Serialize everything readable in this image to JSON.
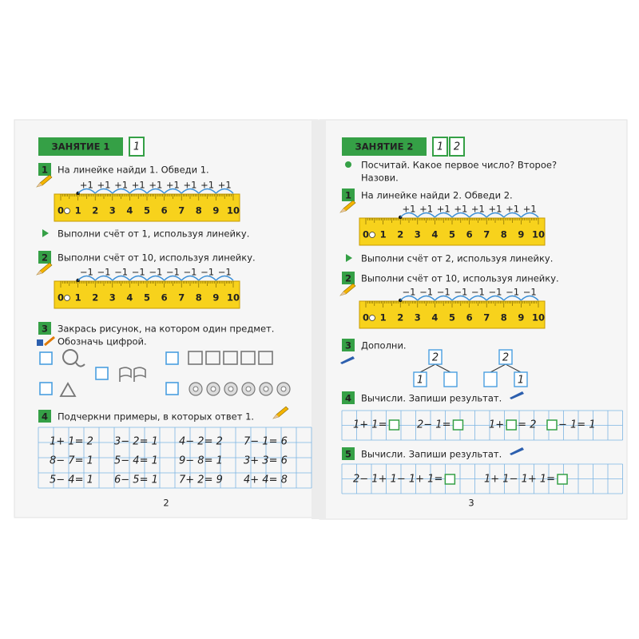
{
  "left": {
    "lesson": "ЗАНЯТИЕ 1",
    "lesson_boxes": [
      "1"
    ],
    "t1": {
      "number": "1",
      "text": "На линейке найди 1. Обведи 1.",
      "steps": [
        "+1",
        "+1",
        "+1",
        "+1",
        "+1",
        "+1",
        "+1",
        "+1",
        "+1"
      ],
      "ruler": [
        "0",
        "1",
        "2",
        "3",
        "4",
        "5",
        "6",
        "7",
        "8",
        "9",
        "10"
      ]
    },
    "hint1": "Выполни счёт от 1, используя линейку.",
    "t2": {
      "number": "2",
      "text": "Выполни счёт от 10, используя линейку.",
      "steps": [
        "−1",
        "−1",
        "−1",
        "−1",
        "−1",
        "−1",
        "−1",
        "−1",
        "−1"
      ],
      "ruler": [
        "0",
        "1",
        "2",
        "3",
        "4",
        "5",
        "6",
        "7",
        "8",
        "9",
        "10"
      ]
    },
    "t3": {
      "number": "3",
      "lines": [
        "Закрась рисунок, на котором один предмет.",
        "Обозначь цифрой."
      ]
    },
    "t4": {
      "number": "4",
      "text": "Подчеркни примеры, в которых ответ 1.",
      "rows": [
        [
          "1+ 1= 2",
          "3− 2= 1",
          "4− 2= 2",
          "7− 1= 6"
        ],
        [
          "8− 7= 1",
          "5− 4= 1",
          "9− 8= 1",
          "3+ 3= 6"
        ],
        [
          "5− 4= 1",
          "6− 5= 1",
          "7+ 2= 9",
          "4+ 4= 8"
        ]
      ]
    },
    "page": "2"
  },
  "right": {
    "lesson": "ЗАНЯТИЕ 2",
    "lesson_boxes": [
      "1",
      "2"
    ],
    "intro": [
      "Посчитай. Какое первое число? Второе?",
      "Назови."
    ],
    "t1": {
      "number": "1",
      "text": "На линейке найди 2. Обведи 2.",
      "steps": [
        "+1",
        "+1",
        "+1",
        "+1",
        "+1",
        "+1",
        "+1",
        "+1"
      ],
      "ruler": [
        "0",
        "1",
        "2",
        "3",
        "4",
        "5",
        "6",
        "7",
        "8",
        "9",
        "10"
      ]
    },
    "hint1": "Выполни счёт от 2, используя линейку.",
    "t2": {
      "number": "2",
      "text": "Выполни счёт от 10, используя линейку.",
      "steps": [
        "−1",
        "−1",
        "−1",
        "−1",
        "−1",
        "−1",
        "−1",
        "−1"
      ],
      "ruler": [
        "0",
        "1",
        "2",
        "3",
        "4",
        "5",
        "6",
        "7",
        "8",
        "9",
        "10"
      ]
    },
    "t3": {
      "number": "3",
      "text": "Дополни.",
      "trees": [
        {
          "top": "2",
          "left": "1",
          "right": null
        },
        {
          "top": "2",
          "left": null,
          "right": "1"
        }
      ]
    },
    "t4": {
      "number": "4",
      "text": "Вычисли. Запиши результат.",
      "items": [
        [
          "1+ 1=",
          null
        ],
        [
          "2− 1=",
          null
        ],
        [
          "1+",
          null,
          "= 2"
        ],
        [
          null,
          "− 1= 1"
        ]
      ]
    },
    "t5": {
      "number": "5",
      "text": "Вычисли. Запиши результат.",
      "items": [
        [
          "2− 1+ 1− 1+ 1=",
          null
        ],
        [
          "1+ 1− 1+ 1=",
          null
        ]
      ]
    },
    "page": "3"
  }
}
